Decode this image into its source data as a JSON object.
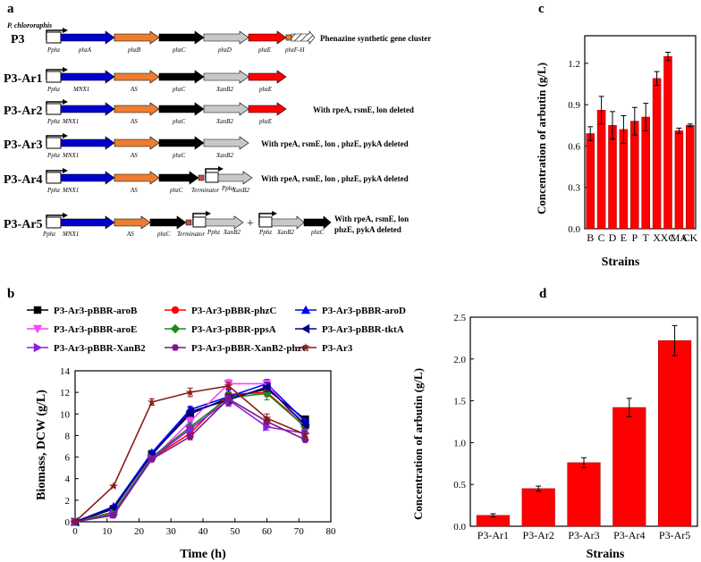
{
  "panel_labels": {
    "a": "a",
    "b": "b",
    "c": "c",
    "d": "d"
  },
  "colors": {
    "red": "#ff0000",
    "blue": "#0000cc",
    "orange": "#ed7d31",
    "black": "#000000",
    "gray": "#c8c8c8",
    "green": "#1c8a1c",
    "magenta": "#ff40ff",
    "purple": "#8b1fe0",
    "violet": "#7a1a8a",
    "darkred": "#8b1a1a",
    "navy": "#00008b",
    "brownred": "#c0504d"
  },
  "panel_a": {
    "rows": [
      {
        "label": "P3",
        "species": "P. chlororaphis",
        "note": "Phenazine synthetic gene cluster",
        "genes": [
          "phzA",
          "phzB",
          "phzC",
          "phzD",
          "phzE",
          "phzF-H"
        ]
      },
      {
        "label": "P3-Ar1",
        "note": "",
        "genes": [
          "MNX1",
          "AS",
          "phzC",
          "XanB2",
          "phzE"
        ]
      },
      {
        "label": "P3-Ar2",
        "note": "With rpeA, rsmE, lon deleted",
        "genes": [
          "MNX1",
          "AS",
          "phzC",
          "XanB2",
          "phzE"
        ]
      },
      {
        "label": "P3-Ar3",
        "note": "With rpeA, rsmE, lon , phzE, pykA deleted",
        "genes": [
          "MNX1",
          "AS",
          "phzC",
          "XanB2"
        ]
      },
      {
        "label": "P3-Ar4",
        "note": "With rpeA, rsmE, lon , phzE, pykA deleted",
        "genes": [
          "MNX1",
          "AS",
          "phzC",
          "Terminator",
          "Pphz",
          "XanB2"
        ]
      },
      {
        "label": "P3-Ar5",
        "note_line1": "With rpeA, rsmE, lon",
        "note_line2": "phzE, pykA deleted",
        "genes": [
          "MNX1",
          "AS",
          "phzC",
          "Terminator",
          "Pphz",
          "XanB2",
          "Pphz",
          "XanB2",
          "phzC"
        ],
        "plus": "+"
      }
    ],
    "promoter": "Pphz"
  },
  "chart_data": [
    {
      "type": "line",
      "panel": "b",
      "xlabel": "Time (h)",
      "ylabel": "Biomass, DCW (g/L)",
      "xlim": [
        0,
        80
      ],
      "ylim": [
        0,
        14
      ],
      "xticks": [
        0,
        10,
        20,
        30,
        40,
        50,
        60,
        70,
        80
      ],
      "yticks": [
        0,
        2,
        4,
        6,
        8,
        10,
        12,
        14
      ],
      "x": [
        0,
        12,
        24,
        36,
        48,
        60,
        72
      ],
      "series": [
        {
          "name": "P3-Ar3-pBBR-aroB",
          "color": "#000000",
          "marker": "square",
          "values": [
            0,
            1.2,
            6.3,
            10.0,
            11.5,
            12.3,
            9.5
          ],
          "err": [
            0,
            0.1,
            0.2,
            0.4,
            0.5,
            0.4,
            0.3
          ]
        },
        {
          "name": "P3-Ar3-pBBR-phzC",
          "color": "#ff0000",
          "marker": "circle",
          "values": [
            0,
            0.9,
            5.9,
            8.2,
            11.8,
            12.0,
            8.9
          ],
          "err": [
            0,
            0.1,
            0.2,
            0.3,
            0.5,
            0.4,
            0.3
          ]
        },
        {
          "name": "P3-Ar3-pBBR-aroD",
          "color": "#0000ff",
          "marker": "triangle-up",
          "values": [
            0,
            1.4,
            6.4,
            10.4,
            11.6,
            12.8,
            9.3
          ],
          "err": [
            0,
            0.1,
            0.2,
            0.3,
            0.6,
            0.4,
            0.3
          ]
        },
        {
          "name": "P3-Ar3-pBBR-aroE",
          "color": "#ff40ff",
          "marker": "triangle-down",
          "values": [
            0,
            0.8,
            5.8,
            9.3,
            12.8,
            12.8,
            8.6
          ],
          "err": [
            0,
            0.1,
            0.2,
            0.4,
            0.4,
            0.3,
            0.3
          ]
        },
        {
          "name": "P3-Ar3-pBBR-ppsA",
          "color": "#1c8a1c",
          "marker": "diamond",
          "values": [
            0,
            0.9,
            6.0,
            8.8,
            11.5,
            11.9,
            8.8
          ],
          "err": [
            0,
            0.1,
            0.2,
            0.4,
            0.5,
            0.6,
            0.3
          ]
        },
        {
          "name": "P3-Ar3-pBBR-tktA",
          "color": "#00008b",
          "marker": "triangle-left",
          "values": [
            0,
            1.3,
            6.2,
            10.2,
            11.3,
            12.5,
            9.0
          ],
          "err": [
            0,
            0.1,
            0.2,
            0.4,
            0.5,
            0.4,
            0.3
          ]
        },
        {
          "name": "P3-Ar3-pBBR-XanB2",
          "color": "#8b1fe0",
          "marker": "triangle-right",
          "values": [
            0,
            0.7,
            5.9,
            8.6,
            11.3,
            8.8,
            8.2
          ],
          "err": [
            0,
            0.1,
            0.2,
            0.4,
            0.6,
            0.3,
            0.3
          ]
        },
        {
          "name": "P3-Ar3-pBBR-XanB2-phzC",
          "color": "#7a1a8a",
          "marker": "hexagon",
          "values": [
            0,
            0.6,
            5.8,
            7.9,
            11.4,
            9.3,
            7.6
          ],
          "err": [
            0,
            0.1,
            0.2,
            0.3,
            0.5,
            0.3,
            0.2
          ]
        },
        {
          "name": "P3-Ar3",
          "color": "#8b1a1a",
          "marker": "star",
          "values": [
            0,
            3.3,
            11.1,
            12.0,
            12.6,
            9.6,
            8.1
          ],
          "err": [
            0,
            0.1,
            0.3,
            0.4,
            0.3,
            0.4,
            0.3
          ]
        }
      ]
    },
    {
      "type": "bar",
      "panel": "c",
      "xlabel": "Strains",
      "ylabel": "Concentration of arbutin (g/L)",
      "ylim": [
        0,
        1.4
      ],
      "yticks": [
        0.0,
        0.3,
        0.6,
        0.9,
        1.2
      ],
      "categories": [
        "B",
        "C",
        "D",
        "E",
        "P",
        "T",
        "X",
        "XC",
        "MA",
        "CK"
      ],
      "values": [
        0.69,
        0.86,
        0.75,
        0.72,
        0.78,
        0.81,
        1.09,
        1.25,
        0.71,
        0.75
      ],
      "err": [
        0.05,
        0.1,
        0.1,
        0.1,
        0.1,
        0.1,
        0.05,
        0.03,
        0.02,
        0.01
      ]
    },
    {
      "type": "bar",
      "panel": "d",
      "xlabel": "Strains",
      "ylabel": "Concentration of arbutin (g/L)",
      "ylim": [
        0,
        2.5
      ],
      "yticks": [
        0.0,
        0.5,
        1.0,
        1.5,
        2.0,
        2.5
      ],
      "categories": [
        "P3-Ar1",
        "P3-Ar2",
        "P3-Ar3",
        "P3-Ar4",
        "P3-Ar5"
      ],
      "values": [
        0.13,
        0.45,
        0.76,
        1.42,
        2.22
      ],
      "err": [
        0.02,
        0.03,
        0.06,
        0.11,
        0.18
      ]
    }
  ]
}
